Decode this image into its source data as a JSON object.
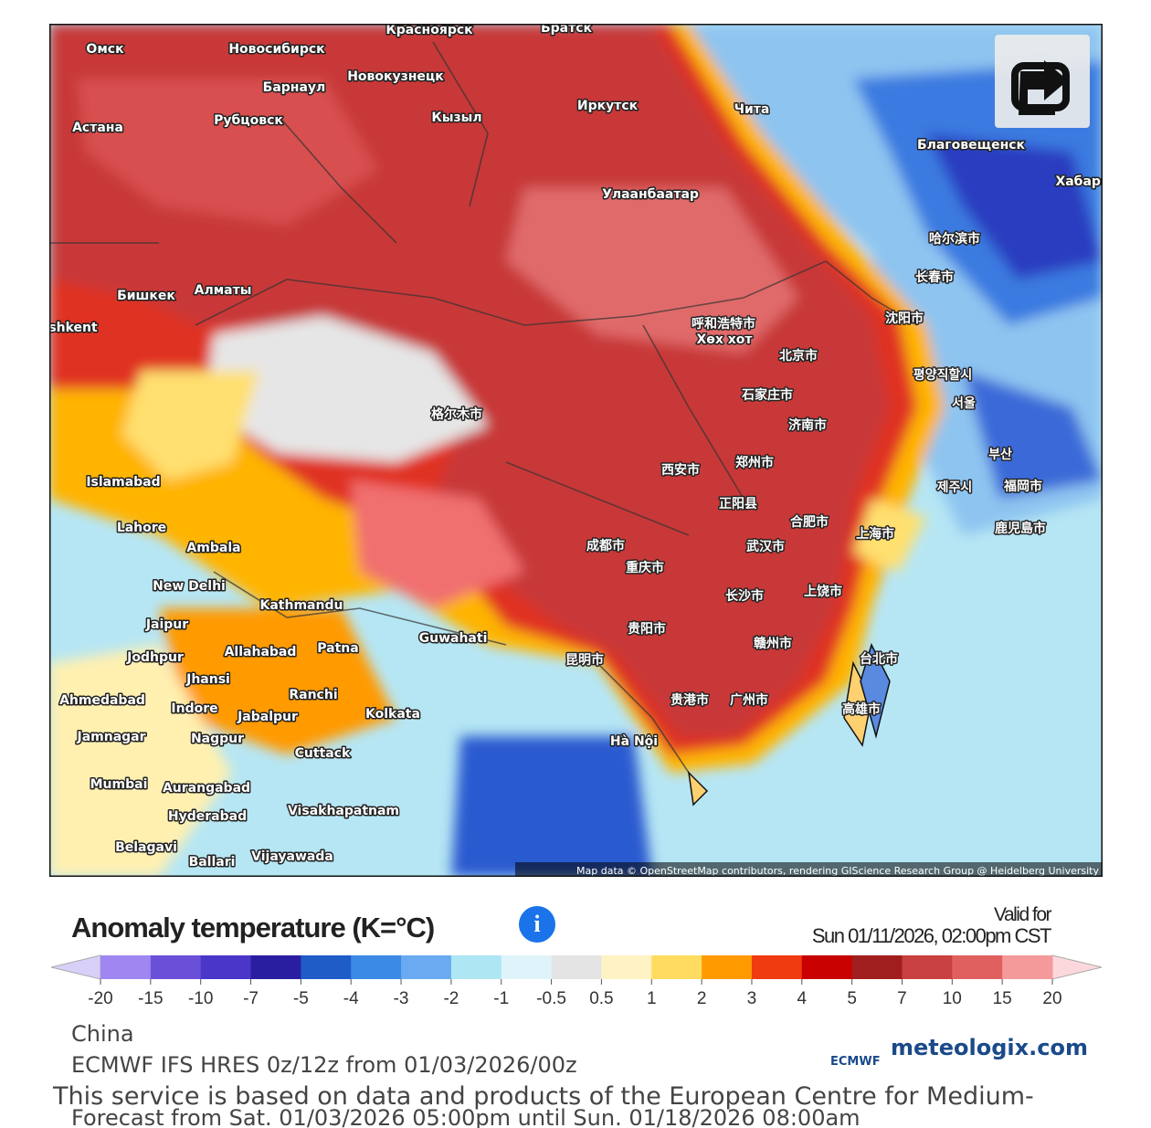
{
  "map": {
    "labels": [
      "Омск",
      "Новосибирск",
      "Барнаул",
      "Новокузнецк",
      "Красноярск",
      "Братск",
      "Иркутск",
      "Чита",
      "Астана",
      "Рубцовск",
      "Кызыл",
      "Улаанбаатар",
      "Благовещенск",
      "Хабаро",
      "哈尔滨市",
      "长春市",
      "沈阳市",
      "Бишкек",
      "Алматы",
      "shkent",
      "呼和浩特市",
      "Хөх хот",
      "北京市",
      "평양직할시",
      "서울",
      "石家庄市",
      "济南市",
      "格尔木市",
      "Islamabad",
      "西安市",
      "郑州市",
      "부산",
      "제주시",
      "福岡市",
      "鹿児島市",
      "正阳县",
      "合肥市",
      "上海市",
      "Lahore",
      "Ambala",
      "成都市",
      "武汉市",
      "重庆市",
      "New Delhi",
      "Kathmandu",
      "长沙市",
      "上饶市",
      "Jaipur",
      "Guwahati",
      "贵阳市",
      "Jodhpur",
      "Allahabad",
      "Patna",
      "Jhansi",
      "台北市",
      "赣州市",
      "昆明市",
      "Ranchi",
      "Ahmedabad",
      "Indore",
      "Jabalpur",
      "Kolkata",
      "贵港市",
      "广州市",
      "高雄市",
      "Jamnagar",
      "Nagpur",
      "Hà Nội",
      "Cuttack",
      "Mumbai",
      "Aurangabad",
      "Visakhapatnam",
      "Hyderabad",
      "Belagavi",
      "Vijayawada",
      "Ballari"
    ],
    "attribution": "Map data © OpenStreetMap contributors, rendering GIScience Research Group @ Heidelberg University"
  },
  "legend": {
    "title": "Anomaly temperature (K=°C)",
    "info": "i",
    "valid_label": "Valid for",
    "valid_time": "Sun 01/11/2026, 02:00pm CST",
    "ticks": [
      -20,
      -15,
      -10,
      -7,
      -5,
      -4,
      -3,
      -2,
      -1,
      -0.5,
      0.5,
      1,
      2,
      3,
      4,
      5,
      7,
      10,
      15,
      20
    ],
    "colors": [
      "#9f86f0",
      "#6a50d8",
      "#4a36c8",
      "#2a1ea0",
      "#1f5cc8",
      "#3a8ae6",
      "#6aaaf0",
      "#aee6f4",
      "#dff4fa",
      "#e4e4e4",
      "#fff2c4",
      "#ffdc60",
      "#ff9a00",
      "#f03a10",
      "#c80000",
      "#a01e1e",
      "#c84040",
      "#e06060",
      "#f49a9a"
    ],
    "low_color": "#d8d0f8",
    "high_color": "#fcd8dc"
  },
  "footer": {
    "region": "China",
    "model": "ECMWF IFS HRES 0z/12z from 01/03/2026/00z",
    "service": "This service is based on data and products of the European Centre for Medium-",
    "forecast": "Forecast from Sat. 01/03/2026 05:00pm until Sun. 01/18/2026 08:00am",
    "ecmwf": "ECMWF",
    "brand": "meteologix.com"
  }
}
